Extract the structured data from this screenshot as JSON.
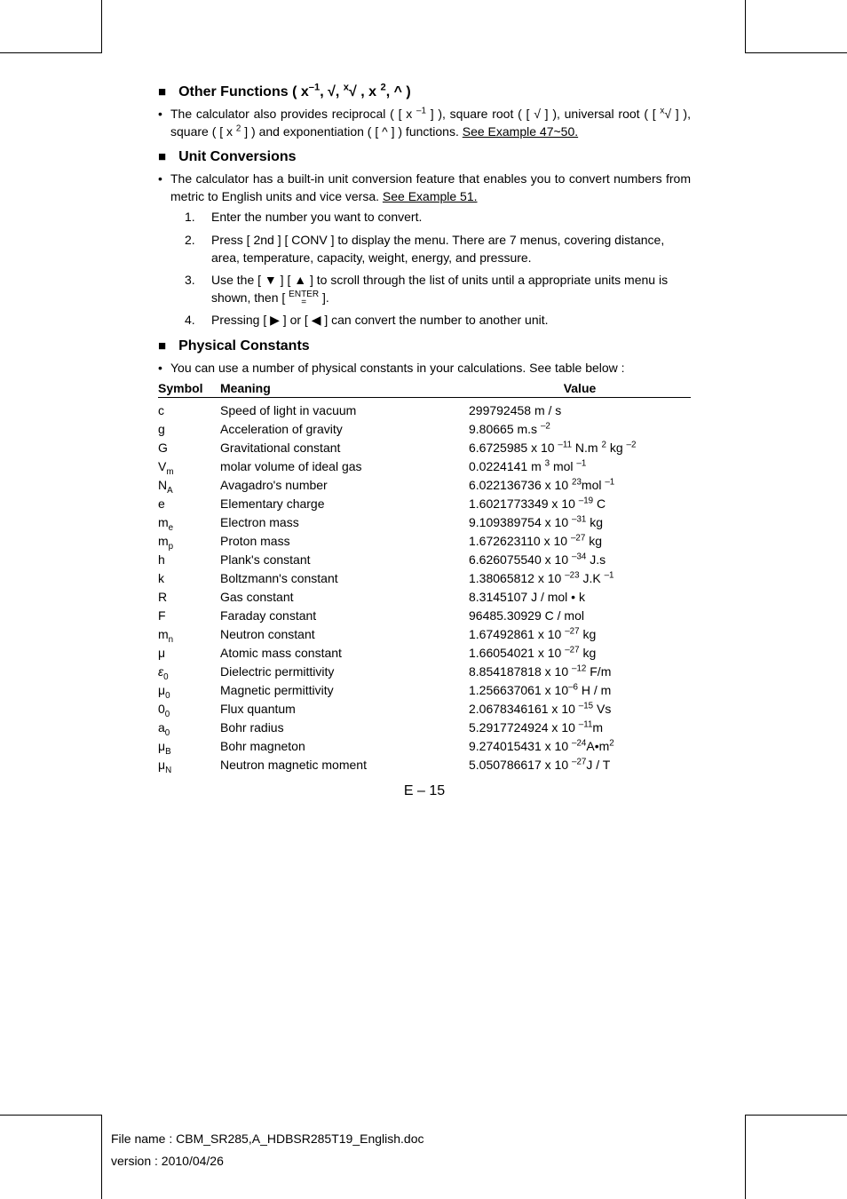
{
  "section1": {
    "title_prefix": "Other Functions ( x",
    "title_sup1": "–1",
    "title_mid": ", √, ",
    "title_root": "x",
    "title_rootpre": "√",
    "title_mid2": " , x ",
    "title_sup2": "2",
    "title_suffix": ", ^ )",
    "body1a": "The calculator also provides reciprocal ( [ x ",
    "body1a_sup": "–1",
    "body1b": " ] ), square root ( [ √ ] ), universal root ( [ ",
    "body1b_rootx": "x",
    "body1b_rootsym": "√",
    "body1c": " ] ), square ( [ x ",
    "body1c_sup": "2",
    "body1d": " ] ) and exponentiation ( [ ^ ] ) functions.   ",
    "body1_link": "See Example 47~50."
  },
  "section2": {
    "title": "Unit Conversions",
    "body1": "The calculator has a built-in unit conversion feature that enables you to convert numbers from metric to English units and vice versa.   ",
    "body1_link": "See Example 51.",
    "items": [
      {
        "num": "1.",
        "text": "Enter the number you want to convert."
      },
      {
        "num": "2.",
        "text": "Press [ 2nd ] [ CONV ] to display the menu. There are 7 menus, covering distance, area, temperature, capacity, weight, energy, and pressure."
      },
      {
        "num": "3.",
        "text_a": "Use the [ ▼ ] [ ▲ ] to scroll through the list of units until a appropriate units menu is shown, then [ ",
        "enter_top": "ENTER",
        "enter_bot": "=",
        "text_b": " ]."
      },
      {
        "num": "4.",
        "text": "Pressing [ ▶ ] or [ ◀ ] can convert the number to another unit."
      }
    ]
  },
  "section3": {
    "title": "Physical Constants",
    "body1": "You can use a number of physical constants in your calculations. See table below :",
    "headers": {
      "symbol": "Symbol",
      "meaning": "Meaning",
      "value": "Value"
    }
  },
  "constants": [
    {
      "sym": "c",
      "mean": "Speed of light in vacuum",
      "val_a": "299792458 m / s"
    },
    {
      "sym": "g",
      "mean": "Acceleration of gravity",
      "val_a": "9.80665 m.s ",
      "sup": "–2"
    },
    {
      "sym": "G",
      "mean": "Gravitational constant",
      "val_a": "6.6725985 x 10 ",
      "sup": "–11",
      "val_b": " N.m ",
      "sup2": "2",
      "val_c": " kg ",
      "sup3": "–2"
    },
    {
      "sym_a": "V",
      "sym_sub": "m",
      "mean": "molar volume of ideal gas",
      "val_a": "0.0224141 m ",
      "sup": "3",
      "val_b": " mol ",
      "sup2": "–1"
    },
    {
      "sym_a": "N",
      "sym_sub": "A",
      "mean": "Avagadro's number",
      "val_a": "6.022136736 x 10 ",
      "sup": "23",
      "val_b": "mol ",
      "sup2": "–1"
    },
    {
      "sym": "e",
      "mean": "Elementary charge",
      "val_a": "1.6021773349 x 10 ",
      "sup": "–19",
      "val_b": " C"
    },
    {
      "sym_a": "m",
      "sym_sub": "e",
      "mean": "Electron mass",
      "val_a": "9.109389754 x 10 ",
      "sup": "–31",
      "val_b": " kg"
    },
    {
      "sym_a": "m",
      "sym_sub": "p",
      "mean": "Proton mass",
      "val_a": "1.672623110 x 10 ",
      "sup": "–27",
      "val_b": " kg"
    },
    {
      "sym": "h",
      "mean": "Plank's constant",
      "val_a": "6.626075540 x 10 ",
      "sup": "–34",
      "val_b": " J.s"
    },
    {
      "sym": "k",
      "mean": "Boltzmann's constant",
      "val_a": "1.38065812 x 10 ",
      "sup": "–23",
      "val_b": " J.K ",
      "sup2": "–1"
    },
    {
      "sym": "R",
      "mean": "Gas constant",
      "val_a": "8.3145107 J / mol • k"
    },
    {
      "sym": "F",
      "mean": "Faraday constant",
      "val_a": "96485.30929 C / mol"
    },
    {
      "sym_a": "m",
      "sym_sub": "n",
      "mean": "Neutron constant",
      "val_a": "1.67492861 x 10 ",
      "sup": "–27",
      "val_b": " kg"
    },
    {
      "sym": "μ",
      "mean": "Atomic mass constant",
      "val_a": "1.66054021 x 10 ",
      "sup": "–27",
      "val_b": " kg"
    },
    {
      "sym_a": "ε",
      "sym_sub": "0",
      "ital": true,
      "mean": "Dielectric permittivity",
      "val_a": "8.854187818 x 10 ",
      "sup": "–12",
      "val_b": " F/m"
    },
    {
      "sym_a": "μ",
      "sym_sub": "0",
      "mean": "Magnetic permittivity",
      "val_a": "1.256637061 x 10",
      "sup": "–6",
      "val_b": " H / m"
    },
    {
      "sym_a": "0",
      "sym_sub": "0",
      "mean": "Flux quantum",
      "val_a": "2.0678346161 x 10 ",
      "sup": "–15",
      "val_b": " Vs"
    },
    {
      "sym_a": "a",
      "sym_sub": "0",
      "mean": "Bohr radius",
      "val_a": "5.2917724924 x 10 ",
      "sup": "–11",
      "val_b": "m"
    },
    {
      "sym_a": "μ",
      "sym_sub": "B",
      "mean": "Bohr magneton",
      "val_a": "9.274015431 x 10 ",
      "sup": "–24",
      "val_b": "A•m",
      "sup2": "2"
    },
    {
      "sym_a": "μ",
      "sym_sub": "N",
      "mean": "Neutron magnetic moment",
      "val_a": "5.050786617 x 10 ",
      "sup": "–27",
      "val_b": "J / T"
    }
  ],
  "page_number": "E – 15",
  "footer": {
    "line1": "File name : CBM_SR285,A_HDBSR285T19_English.doc",
    "line2": "version : 2010/04/26"
  }
}
